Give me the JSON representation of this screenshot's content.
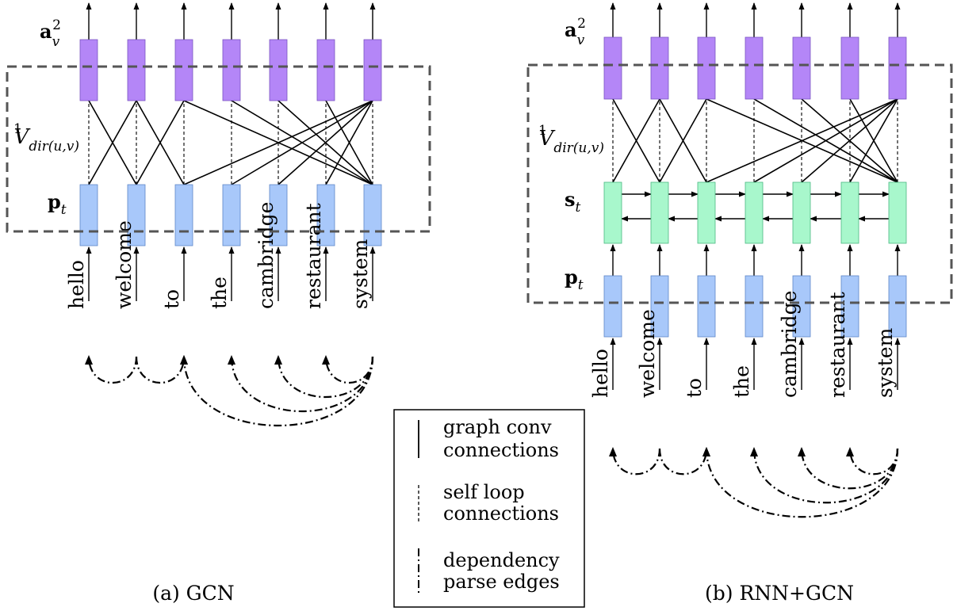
{
  "words": [
    "hello",
    "welcome",
    "to",
    "the",
    "cambridge",
    "restaurant",
    "system"
  ],
  "colors": {
    "output_node": "#b486f7",
    "input_node": "#a8c8fa",
    "rnn_node": "#a8f7cc",
    "box_stroke": "#555555"
  },
  "panel_a": {
    "caption": "(a) GCN",
    "labels": {
      "a": "a",
      "a_sub": "v",
      "a_sup": "2",
      "V": "V",
      "V_sub": "dir(u,v)",
      "V_sup": "1",
      "p": "p",
      "p_sub": "t"
    }
  },
  "panel_b": {
    "caption": "(b) RNN+GCN",
    "labels": {
      "a": "a",
      "a_sub": "v",
      "a_sup": "2",
      "V": "V",
      "V_sub": "dir(u,v)",
      "V_sup": "1",
      "s": "s",
      "s_sub": "t",
      "p": "p",
      "p_sub": "t"
    }
  },
  "graph_conv_edges": [
    [
      0,
      1
    ],
    [
      1,
      0
    ],
    [
      1,
      2
    ],
    [
      2,
      1
    ],
    [
      2,
      6
    ],
    [
      3,
      6
    ],
    [
      4,
      6
    ],
    [
      5,
      6
    ],
    [
      6,
      2
    ],
    [
      6,
      3
    ],
    [
      6,
      4
    ],
    [
      6,
      5
    ]
  ],
  "dependency_edges": [
    [
      1,
      0
    ],
    [
      1,
      2
    ],
    [
      6,
      3
    ],
    [
      6,
      2
    ],
    [
      6,
      4
    ],
    [
      6,
      5
    ]
  ],
  "legend": {
    "graph_conv": [
      "graph conv",
      "connections"
    ],
    "self_loop": [
      "self loop",
      "connections"
    ],
    "dependency": [
      "dependency",
      "parse edges"
    ]
  }
}
